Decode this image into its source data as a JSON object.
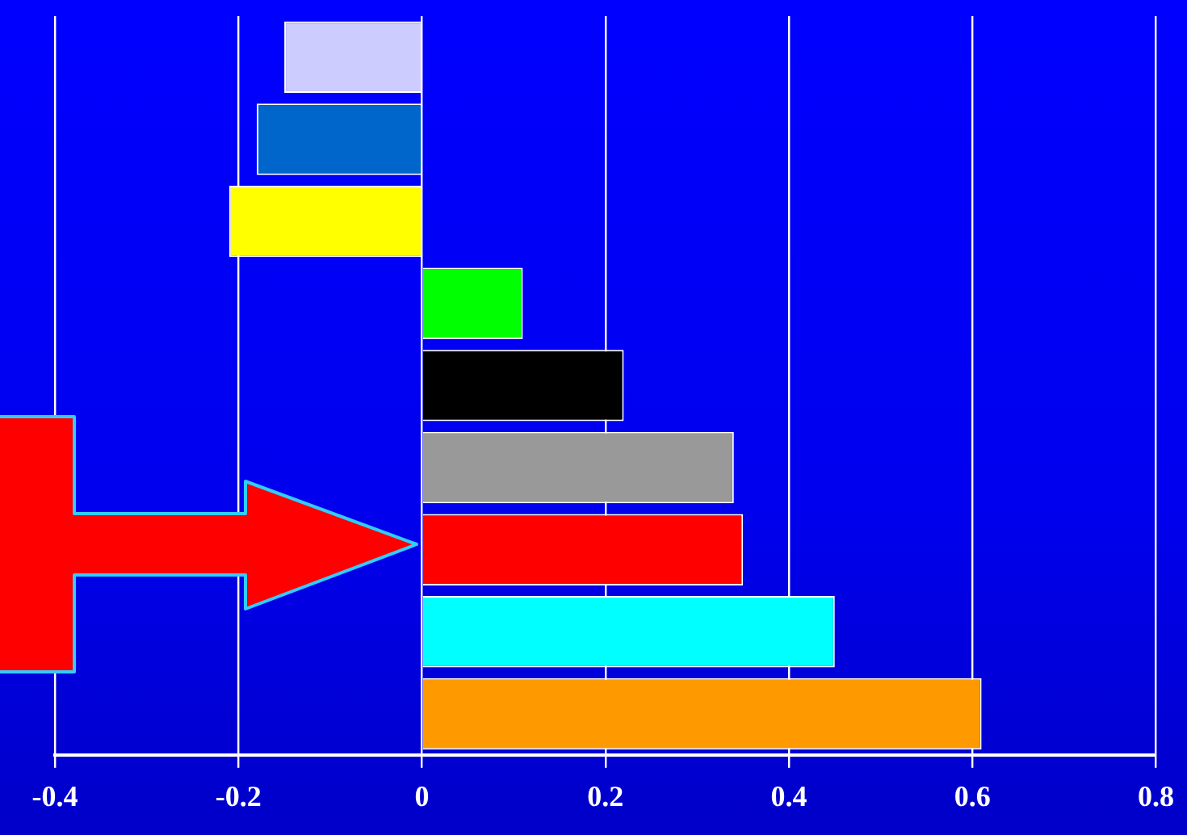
{
  "chart_data": {
    "type": "bar",
    "orientation": "horizontal",
    "categories": [
      null,
      null,
      null,
      null,
      null,
      null,
      null,
      null,
      null
    ],
    "values": [
      -0.15,
      -0.18,
      -0.21,
      0.11,
      0.22,
      0.34,
      0.35,
      0.45,
      0.61
    ],
    "colors": [
      "#ccccff",
      "#0066cc",
      "#ffff00",
      "#00ff00",
      "#000000",
      "#999999",
      "#ff0000",
      "#00ffff",
      "#ff9900"
    ],
    "xlim": [
      -0.4,
      0.8
    ],
    "xticks": [
      -0.4,
      -0.2,
      0,
      0.2,
      0.4,
      0.6,
      0.8
    ],
    "grid": "x",
    "legend": false
  }
}
